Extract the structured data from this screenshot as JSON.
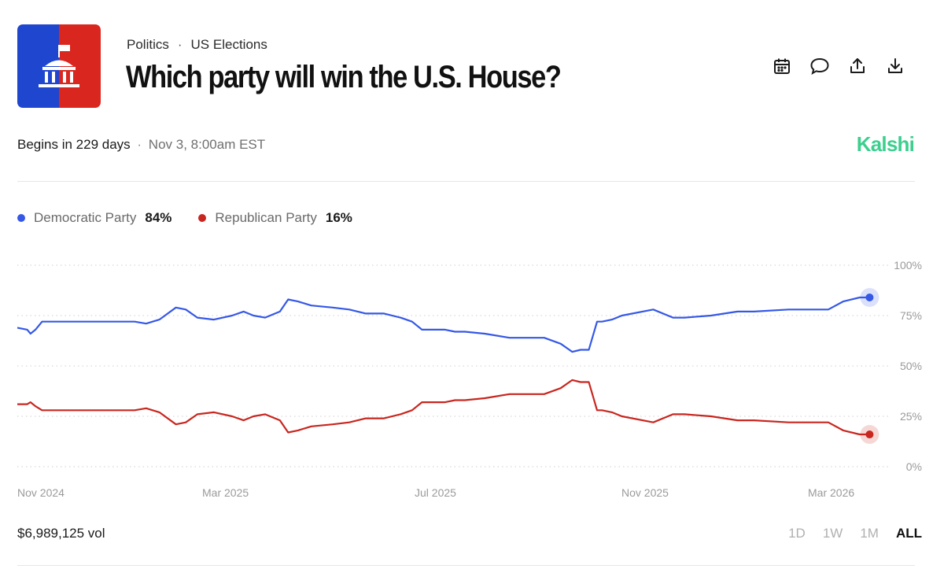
{
  "header": {
    "category": "Politics",
    "separator": "·",
    "subcategory": "US Elections",
    "title": "Which party will win the U.S. House?",
    "logo_colors": {
      "left": "#1f46cf",
      "right": "#d9261f"
    }
  },
  "toolbar": {
    "icons": [
      "calendar-icon",
      "comment-icon",
      "share-icon",
      "download-icon"
    ]
  },
  "event": {
    "begins": "Begins in 229 days",
    "separator": "·",
    "datetime": "Nov 3, 8:00am EST",
    "brand": "Kalshi",
    "brand_color": "#3ccf8e"
  },
  "legend": [
    {
      "name": "Democratic Party",
      "value": "84%",
      "color": "#3558e6"
    },
    {
      "name": "Republican Party",
      "value": "16%",
      "color": "#c8261e"
    }
  ],
  "chart_data": {
    "type": "line",
    "y_ticks": [
      "100%",
      "75%",
      "50%",
      "25%",
      "0%"
    ],
    "ylim": [
      0,
      100
    ],
    "x_ticks": [
      "Nov 2024",
      "Mar 2025",
      "Jul 2025",
      "Nov 2025",
      "Mar 2026"
    ],
    "grid": true,
    "series": [
      {
        "name": "Democratic Party",
        "color": "#3558e6",
        "x": [
          "2024-10-26",
          "2024-11-01",
          "2024-11-03",
          "2024-11-06",
          "2024-11-10",
          "2024-11-25",
          "2024-12-15",
          "2025-01-05",
          "2025-01-12",
          "2025-01-20",
          "2025-01-30",
          "2025-02-05",
          "2025-02-12",
          "2025-02-22",
          "2025-03-05",
          "2025-03-12",
          "2025-03-18",
          "2025-03-25",
          "2025-04-03",
          "2025-04-08",
          "2025-04-14",
          "2025-04-22",
          "2025-05-05",
          "2025-05-15",
          "2025-05-25",
          "2025-06-05",
          "2025-06-15",
          "2025-06-22",
          "2025-06-28",
          "2025-07-05",
          "2025-07-12",
          "2025-07-18",
          "2025-07-24",
          "2025-08-05",
          "2025-08-20",
          "2025-09-10",
          "2025-09-20",
          "2025-09-27",
          "2025-10-02",
          "2025-10-07",
          "2025-10-12",
          "2025-10-15",
          "2025-10-21",
          "2025-10-27",
          "2025-11-15",
          "2025-11-27",
          "2025-12-01",
          "2025-12-04",
          "2025-12-20",
          "2026-01-05",
          "2026-01-15",
          "2026-02-05",
          "2026-02-23",
          "2026-03-01",
          "2026-03-10",
          "2026-03-20",
          "2026-03-26"
        ],
        "values": [
          69,
          68,
          66,
          68,
          72,
          72,
          72,
          72,
          71,
          73,
          79,
          78,
          74,
          73,
          75,
          77,
          75,
          74,
          77,
          83,
          82,
          80,
          79,
          78,
          76,
          76,
          74,
          72,
          68,
          68,
          68,
          67,
          67,
          66,
          64,
          64,
          61,
          57,
          58,
          58,
          72,
          72,
          73,
          75,
          78,
          74,
          74,
          74,
          75,
          77,
          77,
          78,
          78,
          78,
          82,
          84,
          84
        ]
      },
      {
        "name": "Republican Party",
        "color": "#c8261e",
        "x": [
          "2024-10-26",
          "2024-11-01",
          "2024-11-03",
          "2024-11-06",
          "2024-11-10",
          "2024-11-25",
          "2024-12-15",
          "2025-01-05",
          "2025-01-12",
          "2025-01-20",
          "2025-01-30",
          "2025-02-05",
          "2025-02-12",
          "2025-02-22",
          "2025-03-05",
          "2025-03-12",
          "2025-03-18",
          "2025-03-25",
          "2025-04-03",
          "2025-04-08",
          "2025-04-14",
          "2025-04-22",
          "2025-05-05",
          "2025-05-15",
          "2025-05-25",
          "2025-06-05",
          "2025-06-15",
          "2025-06-22",
          "2025-06-28",
          "2025-07-05",
          "2025-07-12",
          "2025-07-18",
          "2025-07-24",
          "2025-08-05",
          "2025-08-20",
          "2025-09-10",
          "2025-09-20",
          "2025-09-27",
          "2025-10-02",
          "2025-10-07",
          "2025-10-12",
          "2025-10-15",
          "2025-10-21",
          "2025-10-27",
          "2025-11-15",
          "2025-11-27",
          "2025-12-01",
          "2025-12-04",
          "2025-12-20",
          "2026-01-05",
          "2026-01-15",
          "2026-02-05",
          "2026-02-23",
          "2026-03-01",
          "2026-03-10",
          "2026-03-20",
          "2026-03-26"
        ],
        "values": [
          31,
          31,
          32,
          30,
          28,
          28,
          28,
          28,
          29,
          27,
          21,
          22,
          26,
          27,
          25,
          23,
          25,
          26,
          23,
          17,
          18,
          20,
          21,
          22,
          24,
          24,
          26,
          28,
          32,
          32,
          32,
          33,
          33,
          34,
          36,
          36,
          39,
          43,
          42,
          42,
          28,
          28,
          27,
          25,
          22,
          26,
          26,
          26,
          25,
          23,
          23,
          22,
          22,
          22,
          18,
          16,
          16
        ]
      }
    ]
  },
  "footer": {
    "volume": "$6,989,125 vol",
    "ranges": [
      "1D",
      "1W",
      "1M",
      "ALL"
    ],
    "active_range": "ALL"
  }
}
